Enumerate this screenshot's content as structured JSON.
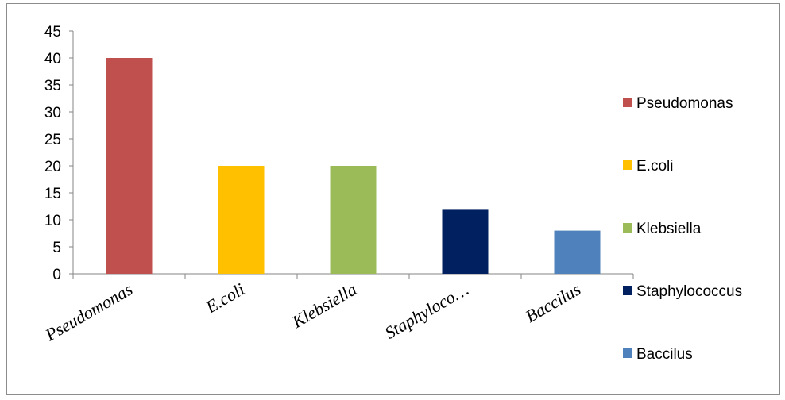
{
  "chart_data": {
    "type": "bar",
    "categories": [
      "Pseudomonas",
      "E.coli",
      "Klebsiella",
      "Staphyloco…",
      "Baccilus"
    ],
    "values": [
      40,
      20,
      20,
      12,
      8
    ],
    "colors": [
      "#c0504d",
      "#ffc000",
      "#9bbb59",
      "#002060",
      "#4f81bd"
    ],
    "legend": [
      "Pseudomonas",
      "E.coli",
      "Klebsiella",
      "Staphylococcus",
      "Baccilus"
    ],
    "legend_position": "right",
    "y_ticks": [
      "0",
      "5",
      "10",
      "15",
      "20",
      "25",
      "30",
      "35",
      "40",
      "45"
    ],
    "ylim": [
      0,
      45
    ],
    "grid": false,
    "title": "",
    "xlabel": "",
    "ylabel": ""
  }
}
